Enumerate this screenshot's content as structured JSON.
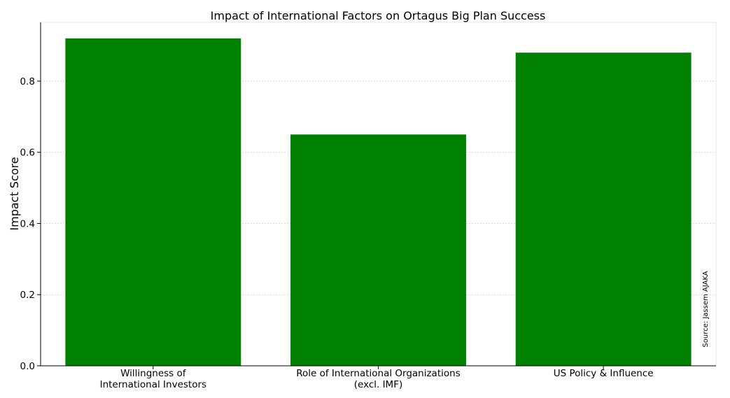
{
  "chart_data": {
    "type": "bar",
    "title": "Impact of International Factors on Ortagus Big Plan Success",
    "xlabel": "",
    "ylabel": "Impact Score",
    "categories": [
      [
        "Willingness of",
        "International Investors"
      ],
      [
        "Role of International Organizations",
        "(excl. IMF)"
      ],
      [
        "US Policy & Influence"
      ]
    ],
    "values": [
      0.92,
      0.65,
      0.88
    ],
    "ylim": [
      0,
      0.965
    ],
    "yticks": [
      "0.0",
      "0.2",
      "0.4",
      "0.6",
      "0.8"
    ],
    "ytick_values": [
      0,
      0.2,
      0.4,
      0.6,
      0.8
    ],
    "grid": true,
    "bar_color": "#008000",
    "annotation": "Source: Jassem AJAKA"
  }
}
